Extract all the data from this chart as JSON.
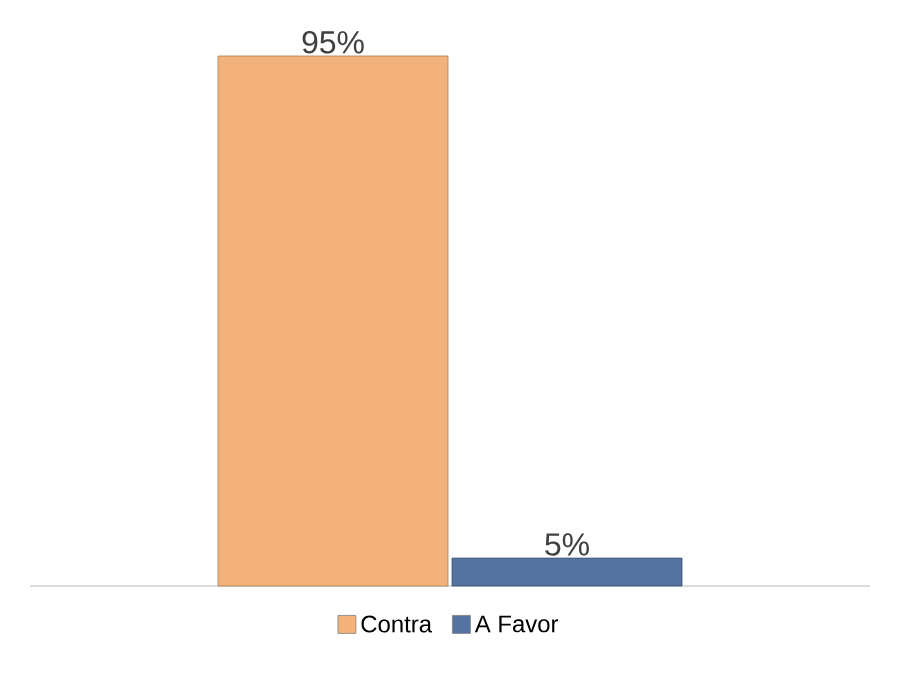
{
  "chart_data": {
    "type": "bar",
    "categories": [
      null
    ],
    "series": [
      {
        "name": "Contra",
        "color": "#f2b27a",
        "values": [
          95
        ],
        "value_labels": [
          "95%"
        ]
      },
      {
        "name": "A Favor",
        "color": "#5473a0",
        "values": [
          5
        ],
        "value_labels": [
          "5%"
        ]
      }
    ],
    "legend": "bottom"
  }
}
